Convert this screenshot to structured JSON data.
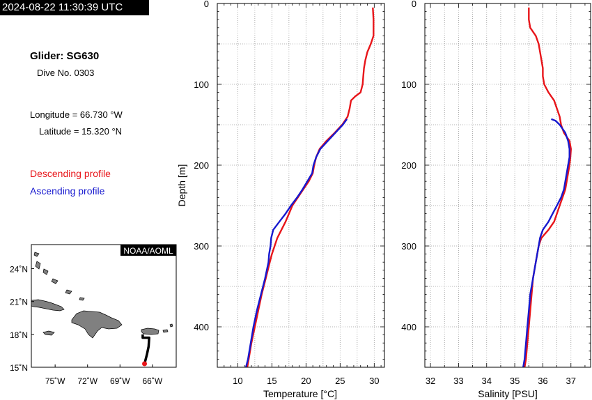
{
  "timestamp": "2024-08-22 11:30:39 UTC",
  "glider": "Glider: SG630",
  "dive": "Dive No. 0303",
  "longitude": "Longitude = 66.730 °W",
  "latitude": "Latitude = 15.320 °N",
  "legend": {
    "descending": "Descending profile",
    "ascending": "Ascending profile"
  },
  "colors": {
    "descending": "#e8151a",
    "ascending": "#1719cf",
    "land": "#808080",
    "track": "#000000",
    "position": "#e8151a"
  },
  "map": {
    "badge": "NOAA/AOML",
    "lon_ticks": [
      "75˚W",
      "72˚W",
      "69˚W",
      "66˚W"
    ],
    "lat_ticks": [
      "24˚N",
      "21˚N",
      "18˚N",
      "15˚N"
    ],
    "lon_range": [
      -77.2,
      -63.8
    ],
    "lat_range": [
      15.0,
      26.2
    ],
    "track": [
      [
        -66.9,
        18.0
      ],
      [
        -66.9,
        17.7
      ],
      [
        -66.3,
        17.7
      ],
      [
        -66.35,
        16.9
      ],
      [
        -66.5,
        16.2
      ],
      [
        -66.73,
        15.32
      ]
    ]
  },
  "chart_data": [
    {
      "type": "line",
      "xlabel": "Temperature [°C]",
      "ylabel": "Depth [m]",
      "xlim": [
        7,
        31.5
      ],
      "ylim": [
        0,
        450
      ],
      "x_ticks": [
        10,
        15,
        20,
        25,
        30
      ],
      "y_ticks": [
        0,
        100,
        200,
        300,
        400
      ],
      "grid": true,
      "series": [
        {
          "name": "Descending profile",
          "depth": [
            5,
            20,
            40,
            50,
            60,
            70,
            80,
            90,
            100,
            110,
            115,
            120,
            130,
            140,
            150,
            160,
            170,
            180,
            190,
            200,
            210,
            220,
            230,
            240,
            250,
            260,
            270,
            280,
            290,
            300,
            310,
            320,
            340,
            360,
            380,
            400,
            420,
            440,
            450
          ],
          "values": [
            29.8,
            29.9,
            29.9,
            29.5,
            29.0,
            28.7,
            28.5,
            28.4,
            28.3,
            28.0,
            27.2,
            26.6,
            26.4,
            26.1,
            25.3,
            24.2,
            23.0,
            22.0,
            21.5,
            21.2,
            21.0,
            20.4,
            19.6,
            18.8,
            18.0,
            17.5,
            17.0,
            16.4,
            15.8,
            15.4,
            15.0,
            14.7,
            14.1,
            13.5,
            13.0,
            12.5,
            12.0,
            11.6,
            11.4
          ]
        },
        {
          "name": "Ascending profile",
          "depth": [
            143,
            150,
            160,
            170,
            180,
            190,
            200,
            210,
            220,
            230,
            240,
            250,
            260,
            270,
            280,
            290,
            300,
            310,
            320,
            340,
            360,
            380,
            400,
            420,
            440,
            450
          ],
          "values": [
            26.0,
            25.4,
            24.3,
            23.2,
            22.1,
            21.5,
            21.1,
            20.9,
            20.2,
            19.5,
            18.7,
            17.8,
            17.0,
            16.1,
            15.2,
            14.9,
            14.8,
            14.6,
            14.5,
            14.0,
            13.4,
            12.8,
            12.3,
            11.9,
            11.5,
            11.2
          ]
        }
      ]
    },
    {
      "type": "line",
      "xlabel": "Salinity [PSU]",
      "ylabel": "",
      "xlim": [
        31.8,
        37.7
      ],
      "ylim": [
        0,
        450
      ],
      "x_ticks": [
        32,
        33,
        34,
        35,
        36,
        37
      ],
      "y_ticks": [
        0,
        100,
        200,
        300,
        400
      ],
      "grid": true,
      "series": [
        {
          "name": "Descending profile",
          "depth": [
            5,
            20,
            30,
            40,
            50,
            60,
            70,
            80,
            90,
            100,
            110,
            120,
            130,
            140,
            150,
            160,
            170,
            180,
            190,
            200,
            210,
            220,
            230,
            240,
            250,
            260,
            270,
            280,
            290,
            300,
            320,
            340,
            360,
            380,
            400,
            420,
            440,
            450
          ],
          "values": [
            35.5,
            35.5,
            35.55,
            35.75,
            35.85,
            35.9,
            35.95,
            36.0,
            36.0,
            36.05,
            36.2,
            36.4,
            36.5,
            36.6,
            36.65,
            36.75,
            36.95,
            37.0,
            36.98,
            36.95,
            36.9,
            36.85,
            36.8,
            36.7,
            36.6,
            36.5,
            36.4,
            36.2,
            35.95,
            35.85,
            35.75,
            35.65,
            35.6,
            35.55,
            35.5,
            35.45,
            35.4,
            35.35
          ]
        },
        {
          "name": "Ascending profile",
          "depth": [
            143,
            145,
            150,
            160,
            170,
            180,
            190,
            200,
            210,
            220,
            230,
            240,
            250,
            260,
            270,
            280,
            290,
            300,
            320,
            340,
            360,
            380,
            400,
            420,
            440,
            450
          ],
          "values": [
            36.3,
            36.45,
            36.6,
            36.8,
            36.9,
            36.95,
            36.95,
            36.9,
            36.85,
            36.8,
            36.75,
            36.65,
            36.5,
            36.35,
            36.2,
            36.0,
            35.9,
            35.85,
            35.75,
            35.65,
            35.55,
            35.5,
            35.45,
            35.4,
            35.35,
            35.3
          ]
        }
      ]
    }
  ]
}
